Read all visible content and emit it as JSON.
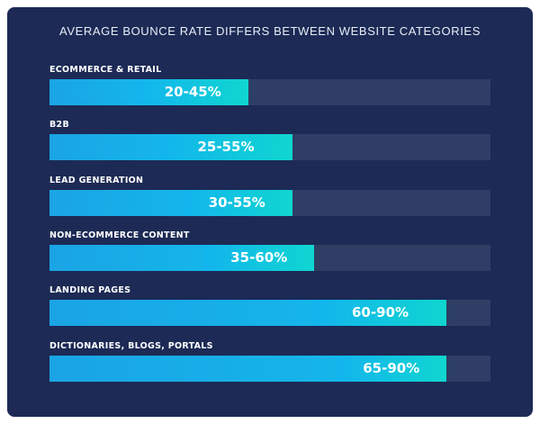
{
  "chart_data": {
    "type": "bar",
    "title": "AVERAGE BOUNCE RATE DIFFERS BETWEEN WEBSITE CATEGORIES",
    "xlim": [
      0,
      100
    ],
    "unit": "%",
    "categories": [
      "ECOMMERCE & RETAIL",
      "B2B",
      "LEAD GENERATION",
      "NON-ECOMMERCE CONTENT",
      "LANDING PAGES",
      "DICTIONARIES, BLOGS, PORTALS"
    ],
    "ranges": [
      {
        "low": 20,
        "high": 45,
        "label": "20-45%"
      },
      {
        "low": 25,
        "high": 55,
        "label": "25-55%"
      },
      {
        "low": 30,
        "high": 55,
        "label": "30-55%"
      },
      {
        "low": 35,
        "high": 60,
        "label": "35-60%"
      },
      {
        "low": 60,
        "high": 90,
        "label": "60-90%"
      },
      {
        "low": 65,
        "high": 90,
        "label": "65-90%"
      }
    ]
  },
  "colors": {
    "background": "#1c2a55",
    "track": "#2e3e65",
    "low_fill": "#1aa4e5",
    "range_start": "#12b4ee",
    "range_end": "#10d6d0",
    "text": "#ffffff"
  }
}
